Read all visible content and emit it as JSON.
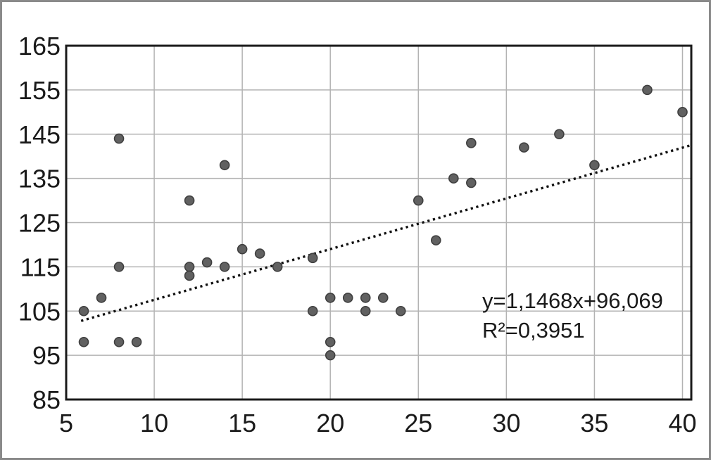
{
  "chart_data": {
    "type": "scatter",
    "title": "",
    "xlabel": "",
    "ylabel": "",
    "x_ticks": [
      5,
      10,
      15,
      20,
      25,
      30,
      35,
      40
    ],
    "y_ticks": [
      85,
      95,
      105,
      115,
      125,
      135,
      145,
      155,
      165
    ],
    "xlim": [
      5,
      40.5
    ],
    "ylim": [
      85,
      165
    ],
    "grid": true,
    "legend": "none",
    "points": [
      [
        6,
        105
      ],
      [
        6,
        98
      ],
      [
        7,
        108
      ],
      [
        8,
        144
      ],
      [
        8,
        115
      ],
      [
        8,
        98
      ],
      [
        9,
        98
      ],
      [
        12,
        130
      ],
      [
        12,
        115
      ],
      [
        12,
        113
      ],
      [
        13,
        116
      ],
      [
        14,
        138
      ],
      [
        14,
        115
      ],
      [
        15,
        119
      ],
      [
        16,
        118
      ],
      [
        17,
        115
      ],
      [
        19,
        117
      ],
      [
        19,
        105
      ],
      [
        20,
        108
      ],
      [
        20,
        98
      ],
      [
        20,
        95
      ],
      [
        21,
        108
      ],
      [
        22,
        108
      ],
      [
        22,
        105
      ],
      [
        23,
        108
      ],
      [
        24,
        105
      ],
      [
        25,
        130
      ],
      [
        26,
        121
      ],
      [
        27,
        135
      ],
      [
        28,
        143
      ],
      [
        28,
        134
      ],
      [
        31,
        142
      ],
      [
        33,
        145
      ],
      [
        35,
        138
      ],
      [
        38,
        155
      ],
      [
        40,
        150
      ]
    ],
    "trendline": {
      "slope": 1.1468,
      "intercept": 96.069,
      "x_start": 5.85,
      "x_end": 40.5,
      "style": "dotted",
      "equation": "y=1,1468x+96,069",
      "r2": "R²=0,3951"
    },
    "colors": {
      "point_fill": "#616161",
      "point_stroke": "#3f3f3f",
      "grid": "#b3b3b3",
      "axis": "#1a1a1a",
      "trend": "#111111",
      "text": "#1a1a1a",
      "frame": "#8a8a8a",
      "background": "#ffffff"
    }
  }
}
